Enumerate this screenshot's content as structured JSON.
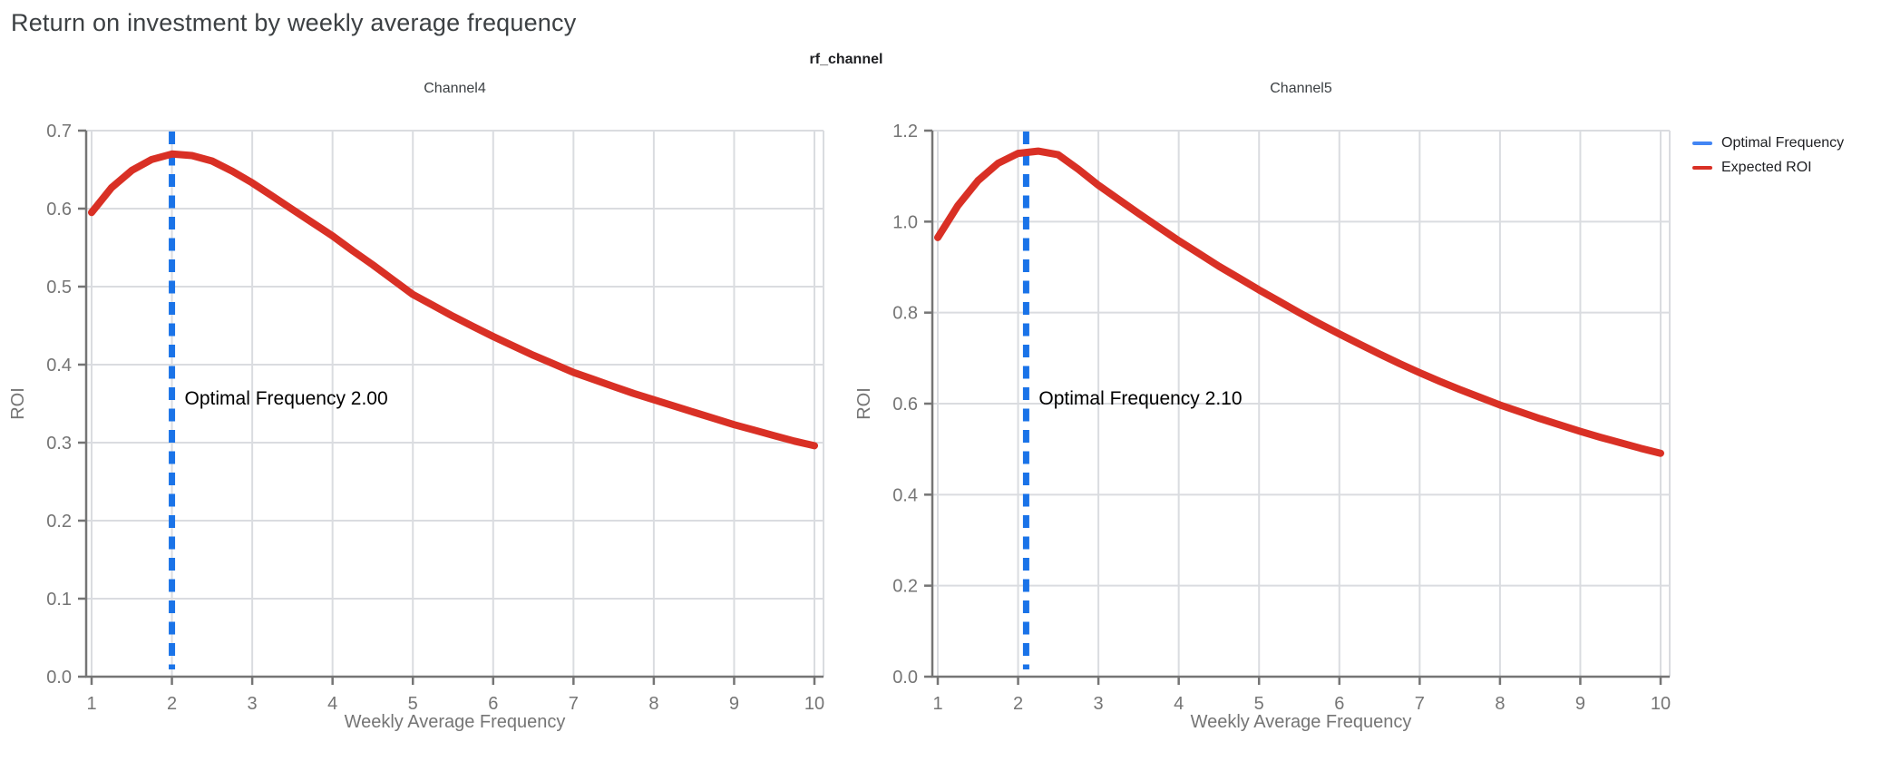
{
  "title": "Return on investment by weekly average frequency",
  "figure": {
    "subtitle": "rf_channel"
  },
  "legend": {
    "items": [
      {
        "label": "Optimal Frequency",
        "color": "#4285f4"
      },
      {
        "label": "Expected ROI",
        "color": "#d93025"
      }
    ]
  },
  "palette": {
    "curve_red": "#d93025",
    "optimal_blue": "#1a73e8",
    "grid": "#dadce0",
    "axis": "#757575",
    "tick_text": "#757575",
    "axis_label_text": "#757575",
    "annotation_text": "#000000"
  },
  "chart_data": [
    {
      "type": "line",
      "title": "Channel4",
      "xlabel": "Weekly Average Frequency",
      "ylabel": "ROI",
      "xlim": [
        1,
        10
      ],
      "ylim": [
        0,
        0.7
      ],
      "xticks": [
        1,
        2,
        3,
        4,
        5,
        6,
        7,
        8,
        9,
        10
      ],
      "xtick_labels": [
        "1",
        "2",
        "3",
        "4",
        "5",
        "6",
        "7",
        "8",
        "9",
        "10"
      ],
      "yticks": [
        0,
        0.1,
        0.2,
        0.3,
        0.4,
        0.5,
        0.6,
        0.7
      ],
      "ytick_labels": [
        "0.0",
        "0.1",
        "0.2",
        "0.3",
        "0.4",
        "0.5",
        "0.6",
        "0.7"
      ],
      "grid": true,
      "optimal_frequency": 2.0,
      "annotation": {
        "text": "Optimal Frequency  2.00",
        "y": 0.357
      },
      "series": [
        {
          "name": "Expected ROI",
          "x": [
            1,
            1.25,
            1.5,
            1.75,
            2,
            2.25,
            2.5,
            2.75,
            3,
            3.25,
            3.5,
            3.75,
            4,
            4.25,
            4.5,
            4.75,
            5,
            5.25,
            5.5,
            5.75,
            6,
            6.25,
            6.5,
            6.75,
            7,
            7.25,
            7.5,
            7.75,
            8,
            8.25,
            8.5,
            8.75,
            9,
            9.25,
            9.5,
            9.75,
            10
          ],
          "y": [
            0.595,
            0.627,
            0.649,
            0.663,
            0.67,
            0.668,
            0.661,
            0.648,
            0.633,
            0.616,
            0.599,
            0.582,
            0.565,
            0.546,
            0.528,
            0.509,
            0.49,
            0.476,
            0.462,
            0.449,
            0.436,
            0.424,
            0.412,
            0.401,
            0.39,
            0.381,
            0.372,
            0.363,
            0.355,
            0.347,
            0.339,
            0.331,
            0.323,
            0.316,
            0.309,
            0.302,
            0.296
          ]
        }
      ]
    },
    {
      "type": "line",
      "title": "Channel5",
      "xlabel": "Weekly Average Frequency",
      "ylabel": "ROI",
      "xlim": [
        1,
        10
      ],
      "ylim": [
        0,
        1.2
      ],
      "xticks": [
        1,
        2,
        3,
        4,
        5,
        6,
        7,
        8,
        9,
        10
      ],
      "xtick_labels": [
        "1",
        "2",
        "3",
        "4",
        "5",
        "6",
        "7",
        "8",
        "9",
        "10"
      ],
      "yticks": [
        0,
        0.2,
        0.4,
        0.6,
        0.8,
        1.0,
        1.2
      ],
      "ytick_labels": [
        "0.0",
        "0.2",
        "0.4",
        "0.6",
        "0.8",
        "1.0",
        "1.2"
      ],
      "grid": true,
      "optimal_frequency": 2.1,
      "annotation": {
        "text": "Optimal Frequency  2.10",
        "y": 0.612
      },
      "series": [
        {
          "name": "Expected ROI",
          "x": [
            1,
            1.25,
            1.5,
            1.75,
            2,
            2.25,
            2.5,
            2.75,
            3,
            3.25,
            3.5,
            3.75,
            4,
            4.25,
            4.5,
            4.75,
            5,
            5.25,
            5.5,
            5.75,
            6,
            6.25,
            6.5,
            6.75,
            7,
            7.25,
            7.5,
            7.75,
            8,
            8.25,
            8.5,
            8.75,
            9,
            9.25,
            9.5,
            9.75,
            10
          ],
          "y": [
            0.965,
            1.035,
            1.09,
            1.128,
            1.15,
            1.155,
            1.147,
            1.115,
            1.08,
            1.049,
            1.018,
            0.988,
            0.958,
            0.93,
            0.902,
            0.876,
            0.85,
            0.825,
            0.8,
            0.776,
            0.753,
            0.731,
            0.709,
            0.688,
            0.668,
            0.649,
            0.631,
            0.614,
            0.597,
            0.582,
            0.567,
            0.553,
            0.539,
            0.526,
            0.514,
            0.502,
            0.491
          ]
        }
      ]
    }
  ]
}
